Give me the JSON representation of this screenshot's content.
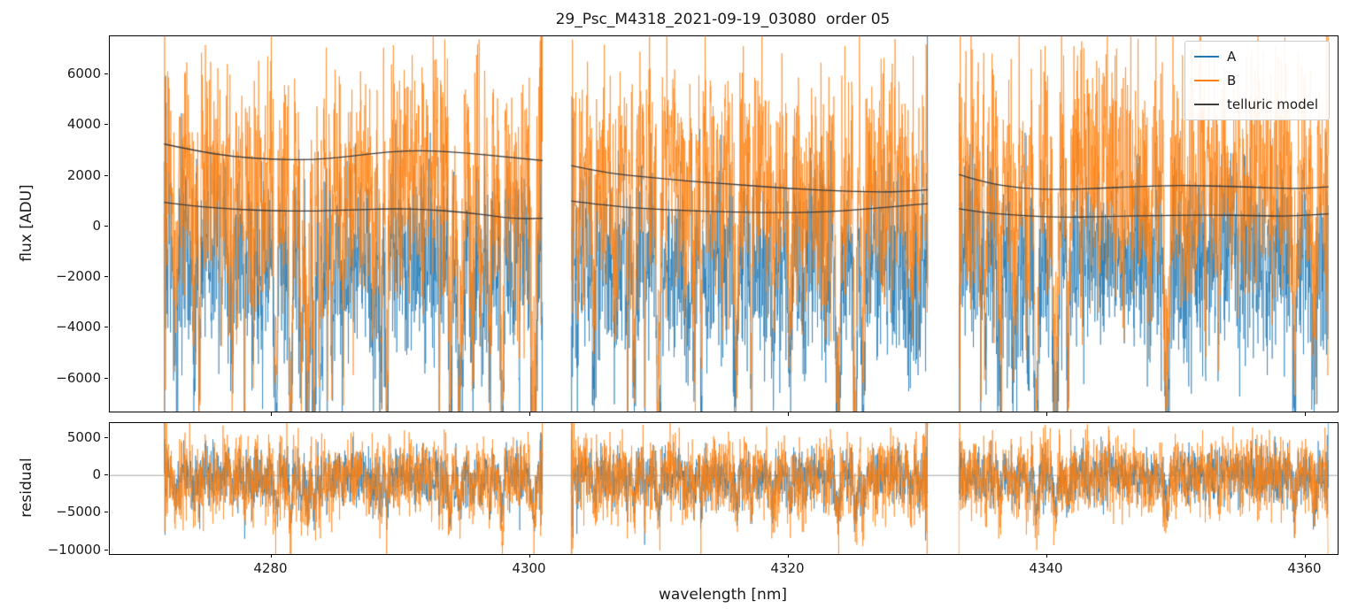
{
  "chart_data": {
    "type": "line",
    "title": "29_Psc_M4318_2021-09-19_03080  order 05",
    "xlabel": "wavelength [nm]",
    "xlim": [
      4267.5,
      4362.5
    ],
    "xticks": [
      4280,
      4300,
      4320,
      4340,
      4360
    ],
    "grid": false,
    "legend_position": "upper right",
    "legend": [
      {
        "label": "A",
        "color": "#1f77b4"
      },
      {
        "label": "B",
        "color": "#ff7f0e"
      },
      {
        "label": "telluric model",
        "color": "#3d3d3d"
      }
    ],
    "segments": [
      [
        4271.7,
        4301.0
      ],
      [
        4303.2,
        4330.8
      ],
      [
        4333.2,
        4361.8
      ]
    ],
    "panels": [
      {
        "name": "flux",
        "ylabel": "flux [ADU]",
        "ylim": [
          -7300,
          7500
        ],
        "yticks": [
          -6000,
          -4000,
          -2000,
          0,
          2000,
          4000,
          6000
        ],
        "series": [
          "A",
          "B",
          "telluric model"
        ],
        "description": "Noisy spectra A (blue, centered near -1200 ADU) and B (orange, centered near +1800 ADU) over three wavelength segments with shared deep absorption spikes; two smooth dark telluric-model continuum curves overlaid."
      },
      {
        "name": "residual",
        "ylabel": "residual",
        "ylim": [
          -10500,
          7000
        ],
        "yticks": [
          -10000,
          -5000,
          0,
          5000
        ],
        "zero_line": true,
        "series": [
          "A",
          "B"
        ],
        "description": "Residual noise for A and B centered on zero, spread roughly +/-5000 with spikes to -10000."
      }
    ],
    "telluric_model": {
      "color": "#3d3d3d",
      "upper": [
        [
          [
            4271.7,
            3250
          ],
          [
            4274,
            3000
          ],
          [
            4277,
            2750
          ],
          [
            4280,
            2650
          ],
          [
            4283,
            2620
          ],
          [
            4286,
            2750
          ],
          [
            4289,
            2950
          ],
          [
            4292,
            3000
          ],
          [
            4295,
            2900
          ],
          [
            4298,
            2750
          ],
          [
            4301,
            2600
          ]
        ],
        [
          [
            4303.2,
            2400
          ],
          [
            4306,
            2100
          ],
          [
            4309,
            1950
          ],
          [
            4312,
            1800
          ],
          [
            4316,
            1650
          ],
          [
            4320,
            1500
          ],
          [
            4324,
            1400
          ],
          [
            4327,
            1350
          ],
          [
            4329,
            1380
          ],
          [
            4330.8,
            1450
          ]
        ],
        [
          [
            4333.2,
            2050
          ],
          [
            4335,
            1750
          ],
          [
            4338,
            1500
          ],
          [
            4341,
            1450
          ],
          [
            4344,
            1500
          ],
          [
            4347,
            1580
          ],
          [
            4350,
            1620
          ],
          [
            4353,
            1600
          ],
          [
            4356,
            1550
          ],
          [
            4359,
            1480
          ],
          [
            4361.8,
            1560
          ]
        ]
      ],
      "lower": [
        [
          [
            4271.7,
            950
          ],
          [
            4274,
            800
          ],
          [
            4277,
            680
          ],
          [
            4280,
            620
          ],
          [
            4283,
            600
          ],
          [
            4286,
            650
          ],
          [
            4289,
            700
          ],
          [
            4292,
            680
          ],
          [
            4295,
            550
          ],
          [
            4297,
            420
          ],
          [
            4299,
            300
          ],
          [
            4301,
            320
          ]
        ],
        [
          [
            4303.2,
            1000
          ],
          [
            4306,
            820
          ],
          [
            4309,
            700
          ],
          [
            4312,
            620
          ],
          [
            4316,
            560
          ],
          [
            4320,
            540
          ],
          [
            4323,
            580
          ],
          [
            4326,
            680
          ],
          [
            4329,
            820
          ],
          [
            4330.8,
            900
          ]
        ],
        [
          [
            4333.2,
            700
          ],
          [
            4335,
            550
          ],
          [
            4338,
            420
          ],
          [
            4341,
            360
          ],
          [
            4344,
            380
          ],
          [
            4347,
            420
          ],
          [
            4350,
            440
          ],
          [
            4353,
            450
          ],
          [
            4356,
            430
          ],
          [
            4359,
            400
          ],
          [
            4361.8,
            500
          ]
        ]
      ]
    },
    "render_hints": {
      "seed": 20210919,
      "sample_step_nm": 0.02,
      "flux_noise": {
        "A": {
          "center": -1200,
          "sigma": 1900
        },
        "B": {
          "center": 1800,
          "sigma": 2400
        }
      },
      "residual_noise": {
        "A": {
          "sigma": 1800
        },
        "B": {
          "sigma": 2600
        }
      },
      "absorption": {
        "start_prob": 0.022,
        "max_len": 34,
        "flux_depth_A": 7200,
        "flux_depth_B": 8200,
        "residual_depth_A": 4800,
        "residual_depth_B": 5200
      },
      "edge_boost": 3.2,
      "line_width": 0.7,
      "alpha": 0.9,
      "colors": {
        "spine": "#000000",
        "tick": "#000000",
        "text": "#1a1a1a",
        "zero_line": "#9a9a9a"
      }
    }
  }
}
